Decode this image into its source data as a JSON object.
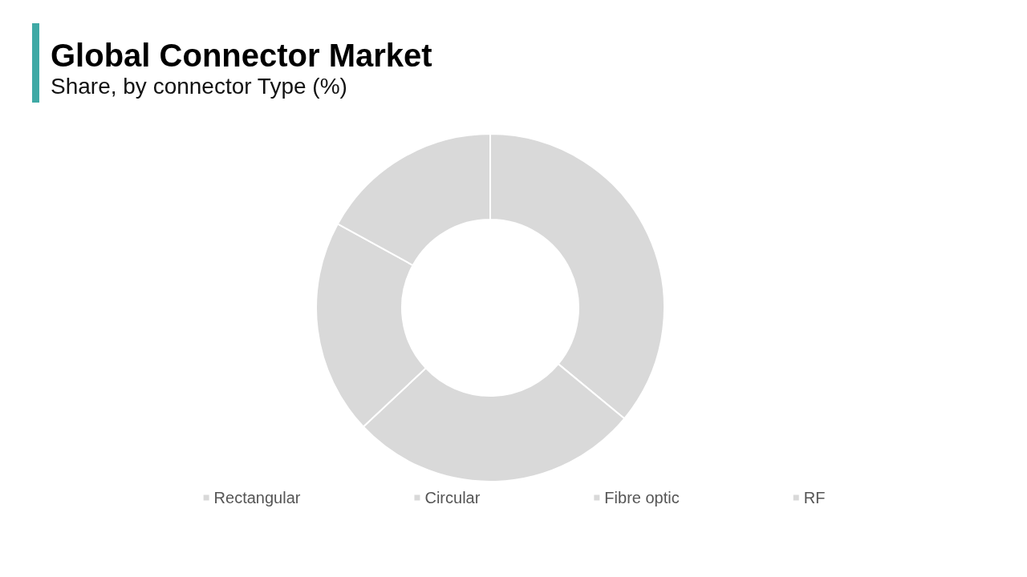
{
  "chart_data": {
    "type": "donut",
    "title": "Global Connector Market",
    "subtitle": "Share, by connector Type (%)",
    "categories": [
      "Rectangular",
      "Circular",
      "Fibre optic",
      "RF"
    ],
    "values": [
      36,
      27,
      20,
      17
    ],
    "colors": [
      "#d9d9d9",
      "#d9d9d9",
      "#d9d9d9",
      "#d9d9d9"
    ],
    "legend": "bottom"
  }
}
